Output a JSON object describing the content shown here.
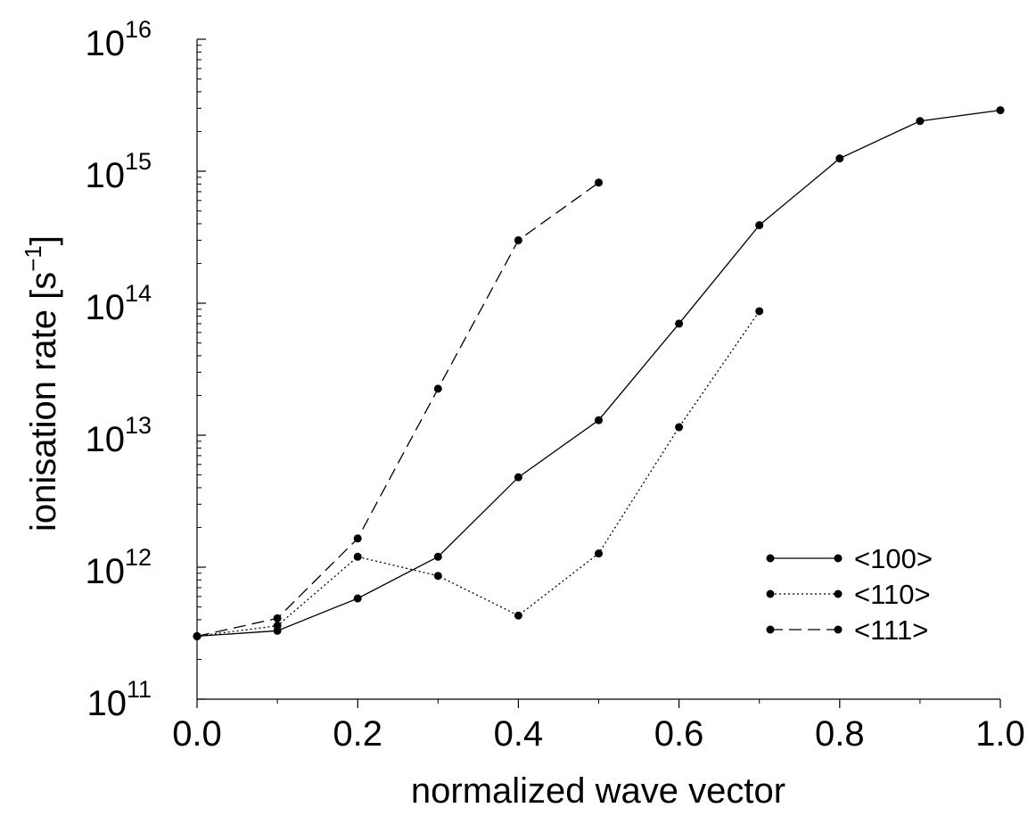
{
  "chart_data": {
    "type": "line",
    "xlabel": "normalized wave vector",
    "ylabel": "ionisation rate [s",
    "ylabel_sup": "−1",
    "ylabel_close": "]",
    "xlim": [
      0.0,
      1.0
    ],
    "ylim": [
      100000000000.0,
      1e+16
    ],
    "yscale": "log",
    "grid": false,
    "legend_position": "bottom-right",
    "x_ticks": [
      "0.0",
      "0.2",
      "0.4",
      "0.6",
      "0.8",
      "1.0"
    ],
    "y_ticks": [
      {
        "base": "10",
        "exp": "11",
        "value": 100000000000.0
      },
      {
        "base": "10",
        "exp": "12",
        "value": 1000000000000.0
      },
      {
        "base": "10",
        "exp": "13",
        "value": 10000000000000.0
      },
      {
        "base": "10",
        "exp": "14",
        "value": 100000000000000.0
      },
      {
        "base": "10",
        "exp": "15",
        "value": 1000000000000000.0
      },
      {
        "base": "10",
        "exp": "16",
        "value": 1e+16
      }
    ],
    "series": [
      {
        "name": "<100>",
        "style": "solid",
        "x": [
          0.0,
          0.1,
          0.2,
          0.3,
          0.4,
          0.5,
          0.6,
          0.7,
          0.8,
          0.9,
          1.0
        ],
        "y": [
          300000000000.0,
          330000000000.0,
          580000000000.0,
          1200000000000.0,
          4800000000000.0,
          13000000000000.0,
          70000000000000.0,
          390000000000000.0,
          1250000000000000.0,
          2400000000000000.0,
          2900000000000000.0
        ]
      },
      {
        "name": "<110>",
        "style": "dotted",
        "x": [
          0.0,
          0.1,
          0.2,
          0.3,
          0.4,
          0.5,
          0.6,
          0.7
        ],
        "y": [
          300000000000.0,
          360000000000.0,
          1200000000000.0,
          860000000000.0,
          430000000000.0,
          1270000000000.0,
          11500000000000.0,
          87000000000000.0
        ]
      },
      {
        "name": "<111>",
        "style": "dashed",
        "x": [
          0.0,
          0.1,
          0.2,
          0.3,
          0.4,
          0.5
        ],
        "y": [
          300000000000.0,
          410000000000.0,
          1650000000000.0,
          22500000000000.0,
          300000000000000.0,
          820000000000000.0
        ]
      }
    ]
  }
}
